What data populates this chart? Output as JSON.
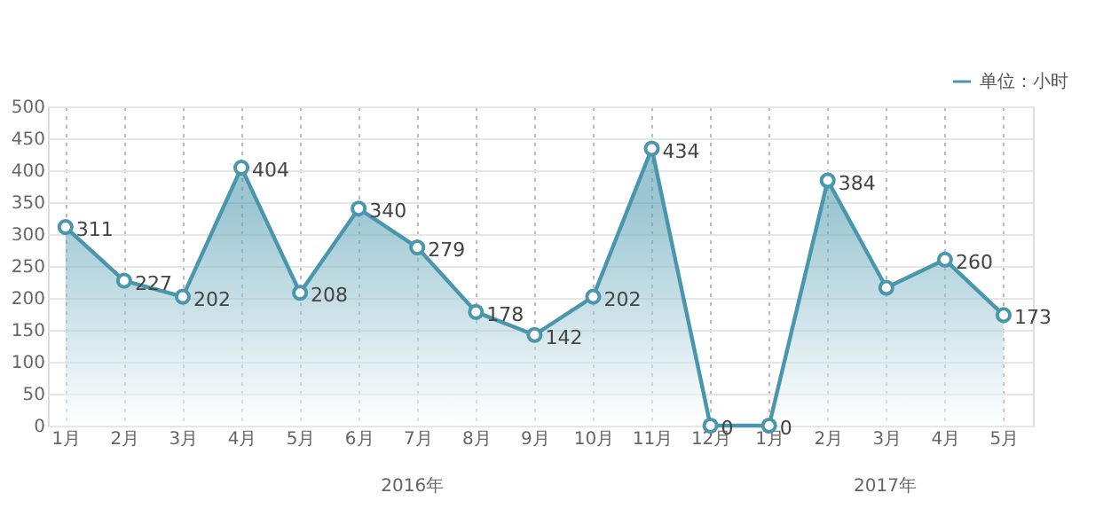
{
  "chart_data": {
    "type": "area",
    "categories": [
      "1月",
      "2月",
      "3月",
      "4月",
      "5月",
      "6月",
      "7月",
      "8月",
      "9月",
      "10月",
      "11月",
      "12月",
      "1月",
      "2月",
      "3月",
      "4月",
      "5月"
    ],
    "series": [
      {
        "name": "单位：小时",
        "color": "#4a97ad",
        "values": [
          311,
          227,
          202,
          404,
          208,
          340,
          279,
          178,
          142,
          202,
          434,
          0,
          0,
          384,
          216,
          260,
          173
        ],
        "value_labels": [
          "311",
          "227",
          "202",
          "404",
          "208",
          "340",
          "279",
          "178",
          "142",
          "202",
          "434",
          "0",
          "0",
          "384",
          null,
          "260",
          "173"
        ]
      }
    ],
    "ylim": [
      0,
      500
    ],
    "yticks": [
      0,
      50,
      100,
      150,
      200,
      250,
      300,
      350,
      400,
      450,
      500
    ],
    "grid": true,
    "legend": "top right",
    "marker": "circle",
    "line_style": "solid",
    "annotations": [
      "2016年",
      "2017年"
    ]
  }
}
